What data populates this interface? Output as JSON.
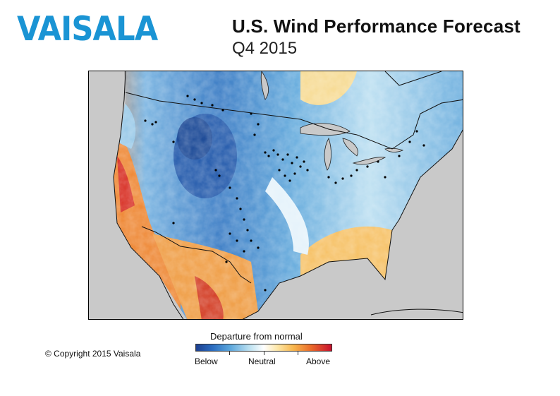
{
  "brand": {
    "logo_text": "VAISALA"
  },
  "header": {
    "title": "U.S. Wind Performance Forecast",
    "subtitle": "Q4 2015"
  },
  "legend": {
    "title": "Departure from normal",
    "labels": {
      "below": "Below",
      "neutral": "Neutral",
      "above": "Above"
    },
    "colors": [
      "#1d3f8f",
      "#2a6cc0",
      "#5aa6dc",
      "#bfe3f2",
      "#ffffff",
      "#fde7a8",
      "#f8b64c",
      "#ea6a2a",
      "#c8102e"
    ]
  },
  "footer": {
    "copyright": "© Copyright 2015 Vaisala"
  },
  "map": {
    "layers": [
      "wind-departure-shading",
      "wind-farm-sites",
      "national-borders",
      "coastlines",
      "great-lakes"
    ],
    "colors": {
      "ocean": "#c9c9c9",
      "sites": "#000000"
    }
  }
}
